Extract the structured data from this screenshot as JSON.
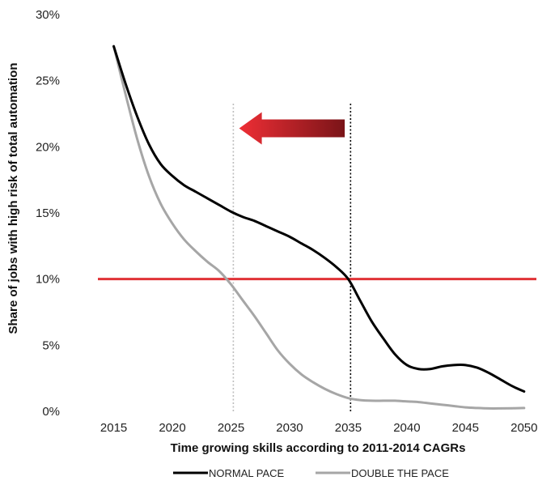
{
  "chart_data": {
    "type": "line",
    "title": "",
    "xlabel": "Time growing skills according to 2011-2014 CAGRs",
    "ylabel": "Share of jobs with high risk of total automation",
    "x_ticks": [
      2015,
      2020,
      2025,
      2030,
      2035,
      2040,
      2045,
      2050
    ],
    "y_ticks": [
      "0%",
      "5%",
      "10%",
      "15%",
      "20%",
      "25%",
      "30%"
    ],
    "xlim": [
      2012.2,
      2051.6
    ],
    "ylim": [
      0,
      30
    ],
    "series": [
      {
        "name": "NORMAL PACE",
        "color": "#000000",
        "points": [
          [
            2015,
            27.6
          ],
          [
            2016,
            24.8
          ],
          [
            2017,
            22.3
          ],
          [
            2018,
            20.2
          ],
          [
            2019,
            18.7
          ],
          [
            2020,
            17.8
          ],
          [
            2021,
            17.1
          ],
          [
            2022,
            16.6
          ],
          [
            2023,
            16.1
          ],
          [
            2024,
            15.6
          ],
          [
            2025,
            15.1
          ],
          [
            2026,
            14.7
          ],
          [
            2027,
            14.4
          ],
          [
            2028,
            14.0
          ],
          [
            2029,
            13.6
          ],
          [
            2030,
            13.2
          ],
          [
            2031,
            12.7
          ],
          [
            2032,
            12.2
          ],
          [
            2033,
            11.6
          ],
          [
            2034,
            10.9
          ],
          [
            2035,
            10.0
          ],
          [
            2036,
            8.4
          ],
          [
            2037,
            6.8
          ],
          [
            2038,
            5.5
          ],
          [
            2039,
            4.3
          ],
          [
            2040,
            3.5
          ],
          [
            2041,
            3.2
          ],
          [
            2042,
            3.2
          ],
          [
            2043,
            3.4
          ],
          [
            2044,
            3.5
          ],
          [
            2045,
            3.5
          ],
          [
            2046,
            3.3
          ],
          [
            2047,
            2.9
          ],
          [
            2048,
            2.4
          ],
          [
            2049,
            1.9
          ],
          [
            2050,
            1.5
          ]
        ]
      },
      {
        "name": "DOUBLE THE PACE",
        "color": "#a6a6a6",
        "points": [
          [
            2015,
            27.6
          ],
          [
            2016,
            24.0
          ],
          [
            2017,
            20.6
          ],
          [
            2018,
            17.8
          ],
          [
            2019,
            15.7
          ],
          [
            2020,
            14.2
          ],
          [
            2021,
            13.0
          ],
          [
            2022,
            12.1
          ],
          [
            2023,
            11.3
          ],
          [
            2024,
            10.6
          ],
          [
            2025,
            9.6
          ],
          [
            2026,
            8.4
          ],
          [
            2027,
            7.2
          ],
          [
            2028,
            5.9
          ],
          [
            2029,
            4.6
          ],
          [
            2030,
            3.6
          ],
          [
            2031,
            2.8
          ],
          [
            2032,
            2.2
          ],
          [
            2033,
            1.7
          ],
          [
            2034,
            1.3
          ],
          [
            2035,
            1.0
          ],
          [
            2036,
            0.85
          ],
          [
            2037,
            0.8
          ],
          [
            2038,
            0.8
          ],
          [
            2039,
            0.8
          ],
          [
            2040,
            0.75
          ],
          [
            2041,
            0.7
          ],
          [
            2042,
            0.6
          ],
          [
            2043,
            0.5
          ],
          [
            2044,
            0.4
          ],
          [
            2045,
            0.3
          ],
          [
            2046,
            0.25
          ],
          [
            2047,
            0.22
          ],
          [
            2048,
            0.22
          ],
          [
            2049,
            0.23
          ],
          [
            2050,
            0.25
          ]
        ]
      }
    ],
    "threshold_line": {
      "y": 10,
      "x_start": 2015,
      "x_end": 2050,
      "color": "#e03236"
    },
    "vertical_markers": [
      {
        "x": 2025.2,
        "color": "#bdbdbd"
      },
      {
        "x": 2035.2,
        "color": "#000000"
      }
    ],
    "arrow": {
      "direction": "left",
      "from_x": 2034.7,
      "to_x": 2025.7,
      "y": 21.4,
      "color_start": "#ee2e35",
      "color_end": "#7a1418"
    },
    "legend_position": "bottom-center",
    "grid": false
  }
}
